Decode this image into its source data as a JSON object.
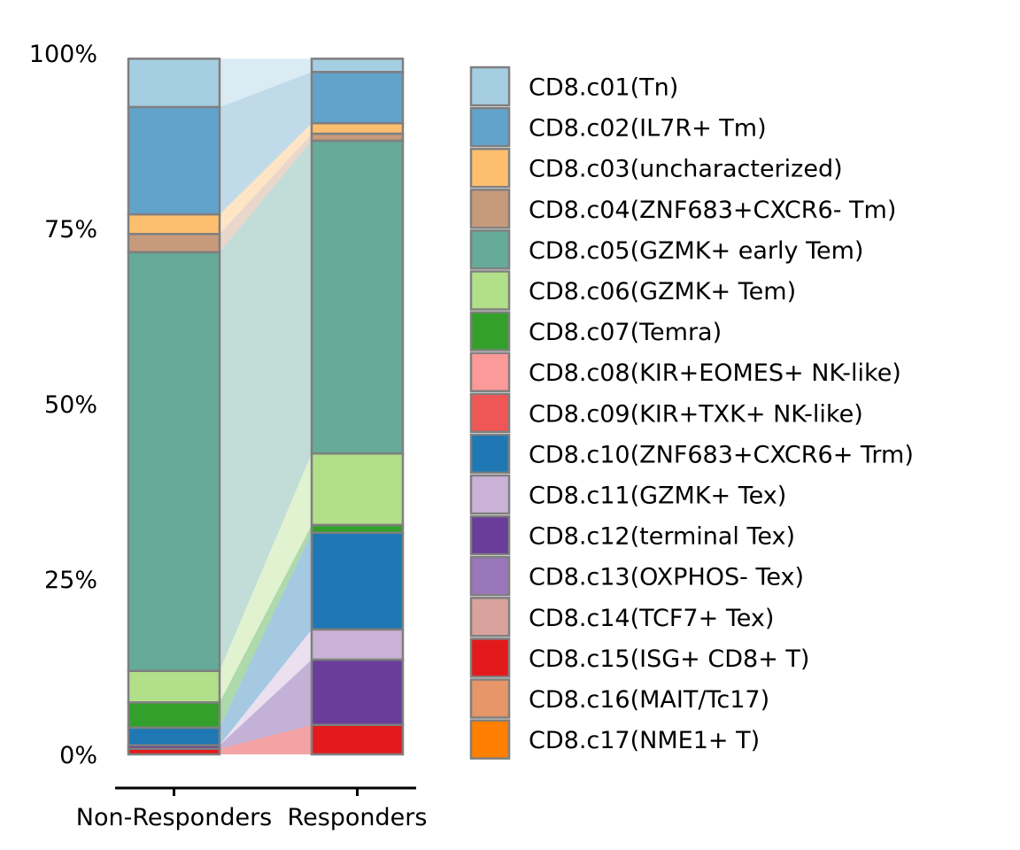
{
  "chart_data": {
    "type": "bar",
    "stacked": true,
    "normalized": true,
    "flows_between_bars": true,
    "categories": [
      "Non-Responders",
      "Responders"
    ],
    "y_ticks": [
      "0%",
      "25%",
      "50%",
      "75%",
      "100%"
    ],
    "ylim": [
      0,
      1
    ],
    "legend_position": "right",
    "grid": false,
    "series": [
      {
        "name": "CD8.c01(Tn)",
        "color": "#A6CEE3",
        "values": [
          0.069,
          0.019
        ]
      },
      {
        "name": "CD8.c02(IL7R+ Tm)",
        "color": "#62A3CB",
        "values": [
          0.153,
          0.073
        ]
      },
      {
        "name": "CD8.c03(uncharacterized)",
        "color": "#FDBF6F",
        "values": [
          0.028,
          0.015
        ]
      },
      {
        "name": "CD8.c04(ZNF683+CXCR6- Tm)",
        "color": "#C79A7C",
        "values": [
          0.026,
          0.01
        ]
      },
      {
        "name": "CD8.c05(GZMK+ early Tem)",
        "color": "#66AA9A",
        "values": [
          0.597,
          0.446
        ]
      },
      {
        "name": "CD8.c06(GZMK+ Tem)",
        "color": "#B2DF8A",
        "values": [
          0.045,
          0.102
        ]
      },
      {
        "name": "CD8.c07(Temra)",
        "color": "#33A02C",
        "values": [
          0.036,
          0.011
        ]
      },
      {
        "name": "CD8.c08(KIR+EOMES+ NK-like)",
        "color": "#FB9A99",
        "values": [
          0.0,
          0.0
        ]
      },
      {
        "name": "CD8.c09(KIR+TXK+ NK-like)",
        "color": "#EF5656",
        "values": [
          0.0,
          0.0
        ]
      },
      {
        "name": "CD8.c10(ZNF683+CXCR6+ Trm)",
        "color": "#1F78B4",
        "values": [
          0.025,
          0.138
        ]
      },
      {
        "name": "CD8.c11(GZMK+ Tex)",
        "color": "#CAB2D6",
        "values": [
          0.0,
          0.043
        ]
      },
      {
        "name": "CD8.c12(terminal Tex)",
        "color": "#6A3D9A",
        "values": [
          0.005,
          0.093
        ]
      },
      {
        "name": "CD8.c13(OXPHOS- Tex)",
        "color": "#9A77B8",
        "values": [
          0.0,
          0.0
        ]
      },
      {
        "name": "CD8.c14(TCF7+ Tex)",
        "color": "#D8A39D",
        "values": [
          0.0,
          0.0
        ]
      },
      {
        "name": "CD8.c15(ISG+ CD8+ T)",
        "color": "#E31A1C",
        "values": [
          0.008,
          0.042
        ]
      },
      {
        "name": "CD8.c16(MAIT/Tc17)",
        "color": "#E69668",
        "values": [
          0.0,
          0.0
        ]
      },
      {
        "name": "CD8.c17(NME1+ T)",
        "color": "#FF7F00",
        "values": [
          0.0,
          0.0
        ]
      }
    ]
  }
}
